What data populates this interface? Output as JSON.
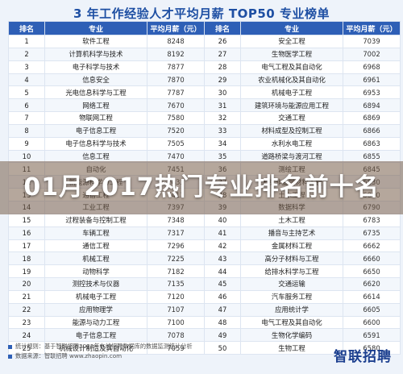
{
  "title": "3 年工作经验人才平均月薪 TOP50 专业榜单",
  "headers": [
    "排名",
    "专业",
    "平均月薪（元）",
    "排名",
    "专业",
    "平均月薪（元）"
  ],
  "rows": [
    [
      "1",
      "软件工程",
      "8248",
      "26",
      "安全工程",
      "7039"
    ],
    [
      "2",
      "计算机科学与技术",
      "8192",
      "27",
      "生物医学工程",
      "7002"
    ],
    [
      "3",
      "电子科学与技术",
      "7877",
      "28",
      "电气工程及其自动化",
      "6968"
    ],
    [
      "4",
      "信息安全",
      "7870",
      "29",
      "农业机械化及其自动化",
      "6961"
    ],
    [
      "5",
      "光电信息科学与工程",
      "7787",
      "30",
      "机械电子工程",
      "6953"
    ],
    [
      "6",
      "网络工程",
      "7670",
      "31",
      "建筑环境与能源应用工程",
      "6894"
    ],
    [
      "7",
      "物联网工程",
      "7580",
      "32",
      "交通工程",
      "6869"
    ],
    [
      "8",
      "电子信息工程",
      "7520",
      "33",
      "材料成型及控制工程",
      "6866"
    ],
    [
      "9",
      "电子信息科学与技术",
      "7505",
      "34",
      "水利水电工程",
      "6863"
    ],
    [
      "10",
      "信息工程",
      "7470",
      "35",
      "道路桥梁与渡河工程",
      "6855"
    ],
    [
      "11",
      "自动化",
      "7451",
      "36",
      "测绘工程",
      "6845"
    ],
    [
      "12",
      "新能源科学与工程",
      "7433",
      "37",
      "无机非金属材料工程",
      "6830"
    ],
    [
      "13",
      "通信工程",
      "7413",
      "38",
      "土木工程",
      "6800"
    ],
    [
      "14",
      "工业工程",
      "7397",
      "39",
      "数据科学",
      "6790"
    ],
    [
      "15",
      "过程装备与控制工程",
      "7348",
      "40",
      "土木工程",
      "6783"
    ],
    [
      "16",
      "车辆工程",
      "7317",
      "41",
      "播音与主持艺术",
      "6735"
    ],
    [
      "17",
      "通信工程",
      "7296",
      "42",
      "金属材料工程",
      "6662"
    ],
    [
      "18",
      "机械工程",
      "7225",
      "43",
      "高分子材料与工程",
      "6660"
    ],
    [
      "19",
      "动物科学",
      "7182",
      "44",
      "给排水科学与工程",
      "6650"
    ],
    [
      "20",
      "测控技术与仪器",
      "7135",
      "45",
      "交通运输",
      "6620"
    ],
    [
      "21",
      "机械电子工程",
      "7120",
      "46",
      "汽车服务工程",
      "6614"
    ],
    [
      "22",
      "应用物理学",
      "7107",
      "47",
      "应用统计学",
      "6605"
    ],
    [
      "23",
      "能源与动力工程",
      "7100",
      "48",
      "电气工程及其自动化",
      "6600"
    ],
    [
      "24",
      "电子信息工程",
      "7078",
      "49",
      "生物化学编码",
      "6591"
    ],
    [
      "25",
      "机械设计制造及其自动化",
      "7059",
      "50",
      "生物工程",
      "6580"
    ]
  ],
  "footnote_1": "统计规则：基于智联招聘2023年在线招聘数据库的数据监测统计分析",
  "footnote_2": "数据来源：智联招聘 www.zhaopin.com",
  "logo_text": "智联招聘",
  "overlay_text": "01月2017热门专业排名前十名"
}
